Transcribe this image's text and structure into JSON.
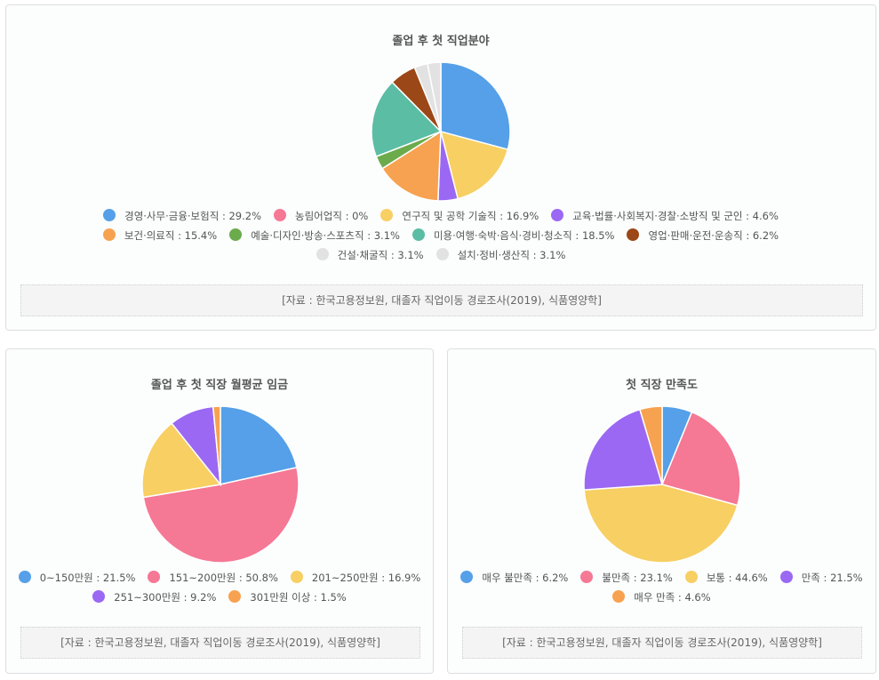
{
  "chart_data": [
    {
      "type": "pie",
      "title": "졸업 후 첫 직업분야",
      "categories": [
        "경영·사무·금융·보험직",
        "농림어업직",
        "연구직 및 공학 기술직",
        "교육·법률·사회복지·경찰·소방직 및 군인",
        "보건·의료직",
        "예술·디자인·방송·스포츠직",
        "미용·여행·숙박·음식·경비·청소직",
        "영업·판매·운전·운송직",
        "건설·채굴직",
        "설치·정비·생산직"
      ],
      "values": [
        29.2,
        0,
        16.9,
        4.6,
        15.4,
        3.1,
        18.5,
        6.2,
        3.1,
        3.1
      ],
      "colors": [
        "#55a0e8",
        "#f57895",
        "#f7cf63",
        "#9b68f3",
        "#f7a250",
        "#6bab4c",
        "#5bbda4",
        "#9b4717",
        "#e2e2e2",
        "#e2e2e2"
      ],
      "legend_labels": [
        "경영·사무·금융·보험직 : 29.2%",
        "농림어업직 : 0%",
        "연구직 및 공학 기술직 : 16.9%",
        "교육·법률·사회복지·경찰·소방직 및 군인 : 4.6%",
        "보건·의료직 : 15.4%",
        "예술·디자인·방송·스포츠직 : 3.1%",
        "미용·여행·숙박·음식·경비·청소직 : 18.5%",
        "영업·판매·운전·운송직 : 6.2%",
        "건설·채굴직 : 3.1%",
        "설치·정비·생산직 : 3.1%"
      ],
      "legend_rows": [
        [
          0,
          1,
          2,
          3
        ],
        [
          4,
          5,
          6,
          7
        ],
        [
          8,
          9
        ]
      ],
      "source": "[자료 : 한국고용정보원, 대졸자 직업이동 경로조사(2019), 식품영양학]"
    },
    {
      "type": "pie",
      "title": "졸업 후 첫 직장 월평균 임금",
      "categories": [
        "0~150만원",
        "151~200만원",
        "201~250만원",
        "251~300만원",
        "301만원 이상"
      ],
      "values": [
        21.5,
        50.8,
        16.9,
        9.2,
        1.5
      ],
      "colors": [
        "#55a0e8",
        "#f57895",
        "#f7cf63",
        "#9b68f3",
        "#f7a250"
      ],
      "legend_labels": [
        "0~150만원 : 21.5%",
        "151~200만원 : 50.8%",
        "201~250만원 : 16.9%",
        "251~300만원 : 9.2%",
        "301만원 이상 : 1.5%"
      ],
      "legend_rows": [
        [
          0,
          1,
          2
        ],
        [
          3,
          4
        ]
      ],
      "source": "[자료 : 한국고용정보원, 대졸자 직업이동 경로조사(2019), 식품영양학]"
    },
    {
      "type": "pie",
      "title": "첫 직장 만족도",
      "categories": [
        "매우 불만족",
        "불만족",
        "보통",
        "만족",
        "매우 만족"
      ],
      "values": [
        6.2,
        23.1,
        44.6,
        21.5,
        4.6
      ],
      "colors": [
        "#55a0e8",
        "#f57895",
        "#f7cf63",
        "#9b68f3",
        "#f7a250"
      ],
      "legend_labels": [
        "매우 불만족 : 6.2%",
        "불만족 : 23.1%",
        "보통 : 44.6%",
        "만족 : 21.5%",
        "매우 만족 : 4.6%"
      ],
      "legend_rows": [
        [
          0,
          1,
          2,
          3
        ],
        [
          4
        ]
      ],
      "source": "[자료 : 한국고용정보원, 대졸자 직업이동 경로조사(2019), 식품영양학]"
    }
  ]
}
